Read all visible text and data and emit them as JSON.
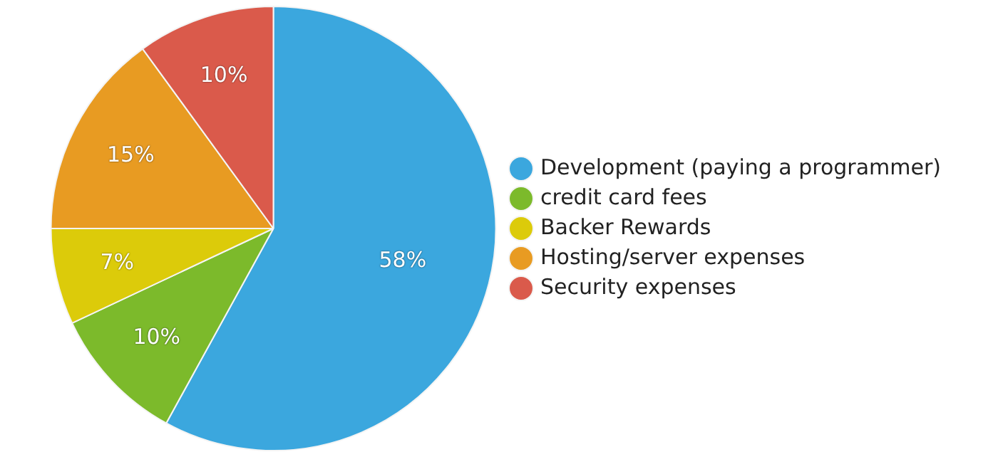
{
  "chart_data": {
    "type": "pie",
    "categories": [
      "Development (paying a programmer)",
      "credit card fees",
      "Backer Rewards",
      "Hosting/server expenses",
      "Security expenses"
    ],
    "values": [
      58,
      10,
      7,
      15,
      10
    ],
    "colors": [
      "#3ba7de",
      "#7cba2b",
      "#dccb0a",
      "#e89b22",
      "#da5a4b"
    ],
    "value_labels": [
      "58%",
      "10%",
      "7%",
      "15%",
      "10%"
    ],
    "legend": "right"
  }
}
